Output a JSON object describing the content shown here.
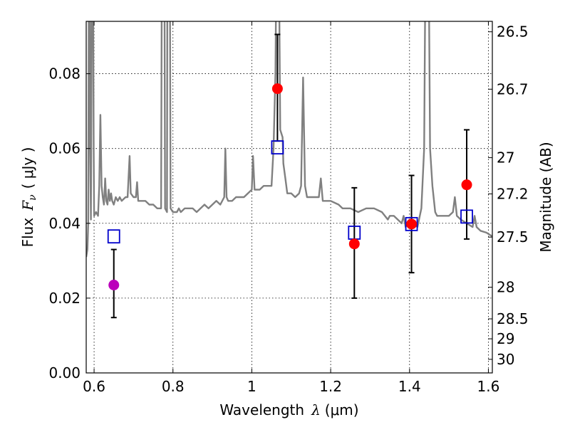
{
  "chart_data": {
    "type": "scatter",
    "title": "",
    "xlabel": "Wavelength",
    "xlabel_symbol": "λ",
    "xlabel_unit": "(μm)",
    "ylabel": "Flux",
    "ylabel_symbol": "F",
    "ylabel_subscript": "ν",
    "ylabel_unit": "( μJy )",
    "ylabel_right": "Magnitude (AB)",
    "xlim": [
      0.58,
      1.61
    ],
    "ylim": [
      0.0,
      0.094
    ],
    "grid": true,
    "x_ticks": [
      {
        "value": 0.6,
        "label": "0.6"
      },
      {
        "value": 0.8,
        "label": "0.8"
      },
      {
        "value": 1.0,
        "label": "1"
      },
      {
        "value": 1.2,
        "label": "1.2"
      },
      {
        "value": 1.4,
        "label": "1.4"
      },
      {
        "value": 1.6,
        "label": "1.6"
      }
    ],
    "y_ticks": [
      {
        "value": 0.0,
        "label": "0.00"
      },
      {
        "value": 0.02,
        "label": "0.02"
      },
      {
        "value": 0.04,
        "label": "0.04"
      },
      {
        "value": 0.06,
        "label": "0.06"
      },
      {
        "value": 0.08,
        "label": "0.08"
      }
    ],
    "right_ticks": [
      {
        "label": "26.5",
        "mag": 26.5
      },
      {
        "label": "26.7",
        "mag": 26.7
      },
      {
        "label": "27",
        "mag": 27
      },
      {
        "label": "27.2",
        "mag": 27.2
      },
      {
        "label": "27.5",
        "mag": 27.5
      },
      {
        "label": "28",
        "mag": 28
      },
      {
        "label": "28.5",
        "mag": 28.5
      },
      {
        "label": "29",
        "mag": 29
      },
      {
        "label": "30",
        "mag": 30
      }
    ],
    "spectrum": {
      "name": "model spectrum",
      "color": "#808080",
      "points": [
        [
          0.58,
          0.031
        ],
        [
          0.583,
          0.033
        ],
        [
          0.585,
          0.04
        ],
        [
          0.587,
          0.12
        ],
        [
          0.589,
          0.12
        ],
        [
          0.59,
          0.06
        ],
        [
          0.592,
          0.041
        ],
        [
          0.595,
          0.12
        ],
        [
          0.597,
          0.12
        ],
        [
          0.599,
          0.06
        ],
        [
          0.6,
          0.042
        ],
        [
          0.605,
          0.043
        ],
        [
          0.61,
          0.042
        ],
        [
          0.613,
          0.05
        ],
        [
          0.616,
          0.069
        ],
        [
          0.619,
          0.05
        ],
        [
          0.622,
          0.047
        ],
        [
          0.625,
          0.045
        ],
        [
          0.628,
          0.052
        ],
        [
          0.631,
          0.046
        ],
        [
          0.634,
          0.045
        ],
        [
          0.637,
          0.049
        ],
        [
          0.64,
          0.046
        ],
        [
          0.643,
          0.048
        ],
        [
          0.646,
          0.046
        ],
        [
          0.65,
          0.045
        ],
        [
          0.655,
          0.047
        ],
        [
          0.66,
          0.046
        ],
        [
          0.665,
          0.047
        ],
        [
          0.67,
          0.046
        ],
        [
          0.68,
          0.047
        ],
        [
          0.685,
          0.047
        ],
        [
          0.69,
          0.058
        ],
        [
          0.693,
          0.048
        ],
        [
          0.7,
          0.047
        ],
        [
          0.706,
          0.047
        ],
        [
          0.709,
          0.051
        ],
        [
          0.712,
          0.046
        ],
        [
          0.72,
          0.046
        ],
        [
          0.73,
          0.046
        ],
        [
          0.74,
          0.045
        ],
        [
          0.75,
          0.045
        ],
        [
          0.76,
          0.044
        ],
        [
          0.77,
          0.044
        ],
        [
          0.772,
          0.12
        ],
        [
          0.778,
          0.12
        ],
        [
          0.78,
          0.044
        ],
        [
          0.785,
          0.043
        ],
        [
          0.786,
          0.12
        ],
        [
          0.792,
          0.12
        ],
        [
          0.794,
          0.044
        ],
        [
          0.8,
          0.043
        ],
        [
          0.81,
          0.043
        ],
        [
          0.815,
          0.044
        ],
        [
          0.82,
          0.043
        ],
        [
          0.83,
          0.044
        ],
        [
          0.85,
          0.044
        ],
        [
          0.86,
          0.043
        ],
        [
          0.87,
          0.044
        ],
        [
          0.88,
          0.045
        ],
        [
          0.89,
          0.044
        ],
        [
          0.9,
          0.045
        ],
        [
          0.91,
          0.046
        ],
        [
          0.92,
          0.045
        ],
        [
          0.93,
          0.047
        ],
        [
          0.933,
          0.06
        ],
        [
          0.936,
          0.047
        ],
        [
          0.94,
          0.046
        ],
        [
          0.95,
          0.046
        ],
        [
          0.96,
          0.047
        ],
        [
          0.97,
          0.047
        ],
        [
          0.98,
          0.047
        ],
        [
          0.99,
          0.048
        ],
        [
          1.0,
          0.049
        ],
        [
          1.003,
          0.058
        ],
        [
          1.007,
          0.049
        ],
        [
          1.02,
          0.049
        ],
        [
          1.03,
          0.05
        ],
        [
          1.04,
          0.05
        ],
        [
          1.05,
          0.05
        ],
        [
          1.055,
          0.06
        ],
        [
          1.06,
          0.08
        ],
        [
          1.063,
          0.12
        ],
        [
          1.068,
          0.12
        ],
        [
          1.072,
          0.065
        ],
        [
          1.078,
          0.063
        ],
        [
          1.08,
          0.056
        ],
        [
          1.085,
          0.052
        ],
        [
          1.09,
          0.048
        ],
        [
          1.1,
          0.048
        ],
        [
          1.11,
          0.047
        ],
        [
          1.12,
          0.048
        ],
        [
          1.125,
          0.05
        ],
        [
          1.13,
          0.079
        ],
        [
          1.135,
          0.05
        ],
        [
          1.14,
          0.047
        ],
        [
          1.16,
          0.047
        ],
        [
          1.17,
          0.047
        ],
        [
          1.175,
          0.052
        ],
        [
          1.18,
          0.046
        ],
        [
          1.19,
          0.046
        ],
        [
          1.2,
          0.046
        ],
        [
          1.22,
          0.045
        ],
        [
          1.23,
          0.044
        ],
        [
          1.25,
          0.044
        ],
        [
          1.27,
          0.043
        ],
        [
          1.29,
          0.044
        ],
        [
          1.31,
          0.044
        ],
        [
          1.33,
          0.043
        ],
        [
          1.345,
          0.041
        ],
        [
          1.35,
          0.042
        ],
        [
          1.36,
          0.042
        ],
        [
          1.37,
          0.041
        ],
        [
          1.38,
          0.04
        ],
        [
          1.385,
          0.042
        ],
        [
          1.39,
          0.039
        ],
        [
          1.4,
          0.041
        ],
        [
          1.41,
          0.04
        ],
        [
          1.42,
          0.039
        ],
        [
          1.43,
          0.044
        ],
        [
          1.437,
          0.06
        ],
        [
          1.441,
          0.12
        ],
        [
          1.448,
          0.12
        ],
        [
          1.452,
          0.06
        ],
        [
          1.458,
          0.05
        ],
        [
          1.465,
          0.043
        ],
        [
          1.47,
          0.042
        ],
        [
          1.48,
          0.042
        ],
        [
          1.49,
          0.042
        ],
        [
          1.5,
          0.042
        ],
        [
          1.51,
          0.043
        ],
        [
          1.515,
          0.047
        ],
        [
          1.52,
          0.042
        ],
        [
          1.53,
          0.041
        ],
        [
          1.545,
          0.04
        ],
        [
          1.56,
          0.039
        ],
        [
          1.565,
          0.042
        ],
        [
          1.57,
          0.039
        ],
        [
          1.58,
          0.038
        ],
        [
          1.595,
          0.0375
        ],
        [
          1.61,
          0.0365
        ]
      ]
    },
    "series": [
      {
        "name": "measured (red)",
        "color": "#ff0000",
        "marker": "circle",
        "points": [
          {
            "x": 1.065,
            "y": 0.076,
            "yerr_low": 0.062,
            "yerr_high": 0.0905
          },
          {
            "x": 1.26,
            "y": 0.0345,
            "yerr_low": 0.02,
            "yerr_high": 0.0495
          },
          {
            "x": 1.405,
            "y": 0.0398,
            "yerr_low": 0.0268,
            "yerr_high": 0.0528
          },
          {
            "x": 1.545,
            "y": 0.0503,
            "yerr_low": 0.0358,
            "yerr_high": 0.065
          }
        ]
      },
      {
        "name": "measured (purple)",
        "color": "#bb00bb",
        "marker": "circle",
        "points": [
          {
            "x": 0.65,
            "y": 0.0235,
            "yerr_low": 0.0148,
            "yerr_high": 0.033
          }
        ]
      },
      {
        "name": "model (blue squares)",
        "color": "#0000cc",
        "marker": "square",
        "points": [
          {
            "x": 0.65,
            "y": 0.0365
          },
          {
            "x": 1.065,
            "y": 0.0603
          },
          {
            "x": 1.26,
            "y": 0.0375
          },
          {
            "x": 1.405,
            "y": 0.0398
          },
          {
            "x": 1.545,
            "y": 0.0418
          }
        ]
      }
    ]
  }
}
